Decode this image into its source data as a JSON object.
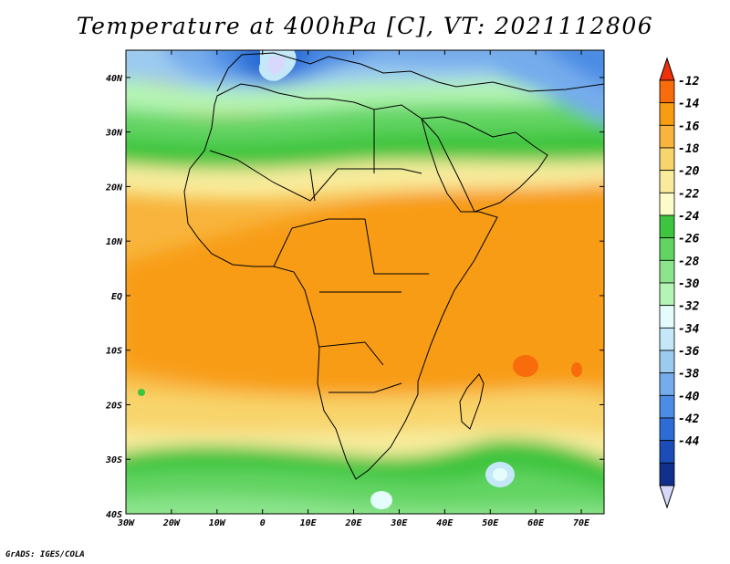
{
  "title": "Temperature at 400hPa [C], VT: 2021112806",
  "credit": "GrADS: IGES/COLA",
  "map": {
    "lon_range": [
      -30,
      75
    ],
    "lat_range": [
      -40,
      45
    ],
    "lon_ticks": [
      {
        "value": -30,
        "label": "30W"
      },
      {
        "value": -20,
        "label": "20W"
      },
      {
        "value": -10,
        "label": "10W"
      },
      {
        "value": 0,
        "label": "0"
      },
      {
        "value": 10,
        "label": "10E"
      },
      {
        "value": 20,
        "label": "20E"
      },
      {
        "value": 30,
        "label": "30E"
      },
      {
        "value": 40,
        "label": "40E"
      },
      {
        "value": 50,
        "label": "50E"
      },
      {
        "value": 60,
        "label": "60E"
      },
      {
        "value": 70,
        "label": "70E"
      }
    ],
    "lat_ticks": [
      {
        "value": 40,
        "label": "40N"
      },
      {
        "value": 30,
        "label": "30N"
      },
      {
        "value": 20,
        "label": "20N"
      },
      {
        "value": 10,
        "label": "10N"
      },
      {
        "value": 0,
        "label": "EQ"
      },
      {
        "value": -10,
        "label": "10S"
      },
      {
        "value": -20,
        "label": "20S"
      },
      {
        "value": -30,
        "label": "30S"
      },
      {
        "value": -40,
        "label": "40S"
      }
    ]
  },
  "colorbar": {
    "levels": [
      -12,
      -14,
      -16,
      -18,
      -20,
      -22,
      -24,
      -26,
      -28,
      -30,
      -32,
      -34,
      -36,
      -38,
      -40,
      -42,
      -44
    ],
    "colors_top_to_bottom": [
      "#f0300a",
      "#f86c0c",
      "#f89c12",
      "#f8b43c",
      "#f8d46c",
      "#f8ec9c",
      "#fcfcc8",
      "#3ec43e",
      "#62d462",
      "#8ce48c",
      "#b4f4b4",
      "#e4fcfc",
      "#c4e8f8",
      "#9ccbf0",
      "#74acec",
      "#4c8ce4",
      "#2c6cd4",
      "#1c4cb8",
      "#10308c",
      "#d8d8fc"
    ]
  }
}
